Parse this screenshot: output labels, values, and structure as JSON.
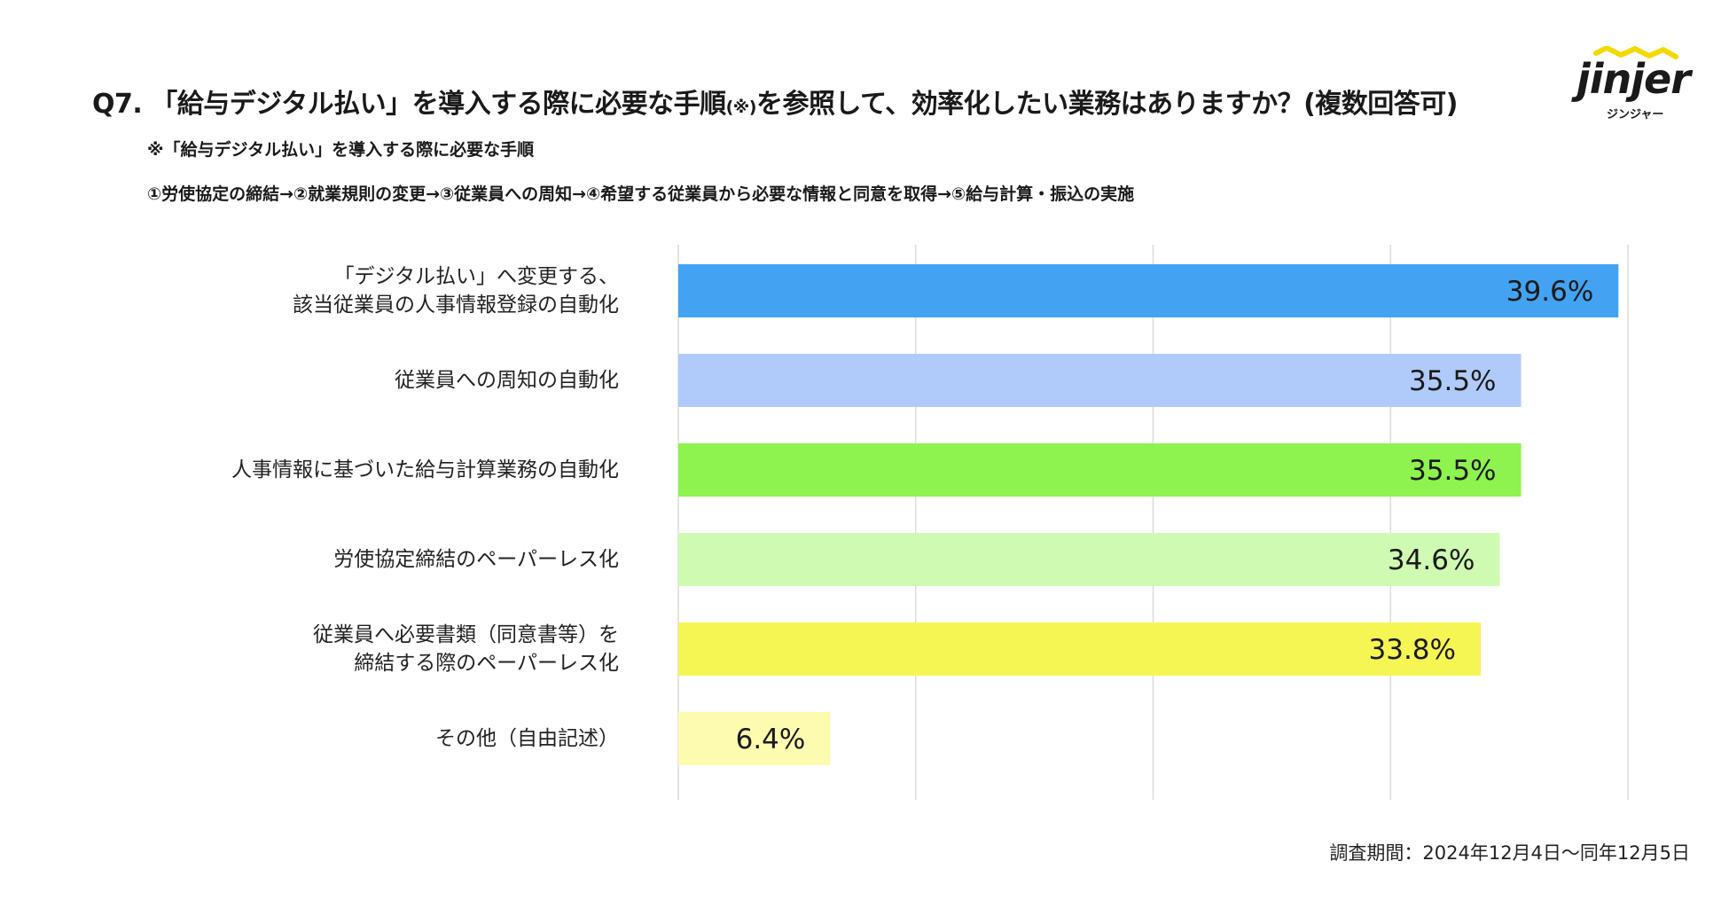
{
  "title": {
    "main_prefix": "Q7. 「給与デジタル払い」を導入する際に必要な手順",
    "note_mark": "(※)",
    "main_suffix": "を参照して、効率化したい業務はありますか？(複数回答可)"
  },
  "subnotes": {
    "line1": "※「給与デジタル払い」を導入する際に必要な手順",
    "line2": "①労使協定の締結→②就業規則の変更→③従業員への周知→④希望する従業員から必要な情報と同意を取得→⑤給与計算・振込の実施"
  },
  "logo": {
    "word": "jinjer",
    "kana": "ジンジャー",
    "accent": "#f5d800"
  },
  "footer": "調査期間：2024年12月4日〜同年12月5日",
  "chart_data": {
    "type": "bar",
    "orientation": "horizontal",
    "categories": [
      "「デジタル払い」へ変更する、\n該当従業員の人事情報登録の自動化",
      "従業員への周知の自動化",
      "人事情報に基づいた給与計算業務の自動化",
      "労使協定締結のペーパーレス化",
      "従業員へ必要書類（同意書等）を\n締結する際のペーパーレス化",
      "その他（自由記述）"
    ],
    "values": [
      39.6,
      35.5,
      35.5,
      34.6,
      33.8,
      6.4
    ],
    "value_labels": [
      "39.6%",
      "35.5%",
      "35.5%",
      "34.6%",
      "33.8%",
      "6.4%"
    ],
    "colors": [
      "#43a3f2",
      "#b0cbfa",
      "#8ef24f",
      "#cefbb1",
      "#f5f554",
      "#fdfbb0"
    ],
    "xlim": [
      0,
      40
    ],
    "grid": true,
    "legend": "none"
  }
}
